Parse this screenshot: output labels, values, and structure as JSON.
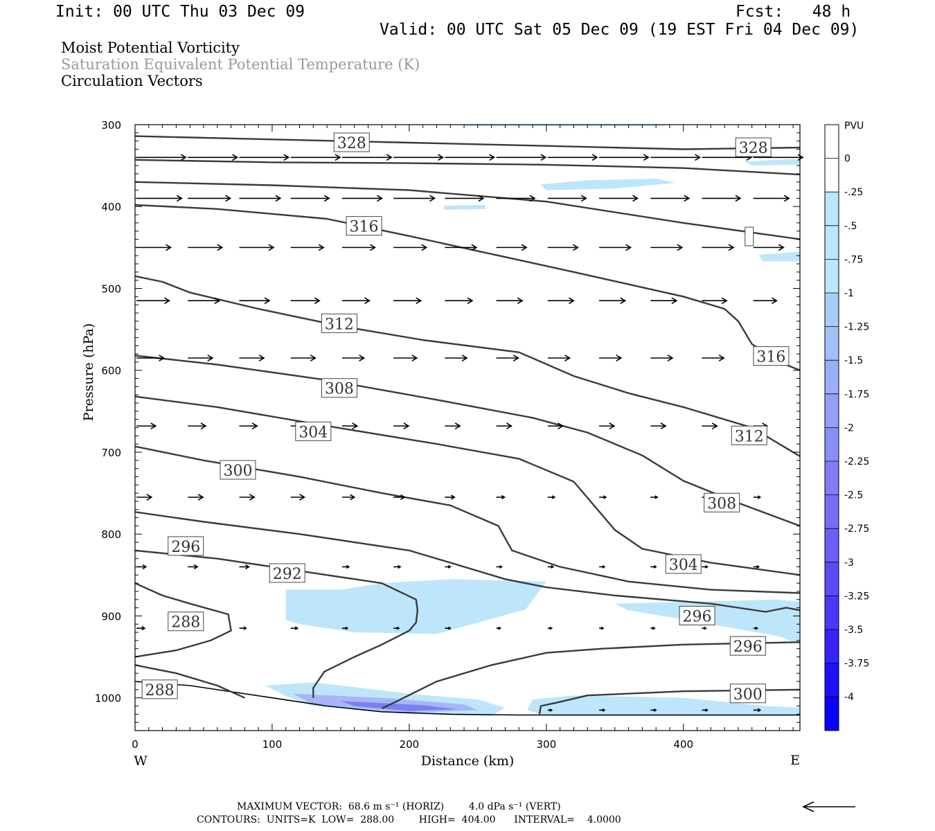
{
  "header": {
    "init": "Init: 00 UTC Thu 03 Dec 09",
    "fcst": "Fcst:   48 h",
    "valid": "Valid: 00 UTC Sat 05 Dec 09 (19 EST Fri 04 Dec 09)"
  },
  "titles": {
    "line1": "Moist Potential Vorticity",
    "line2": "Saturation Equivalent Potential Temperature (K)",
    "line3": "Circulation Vectors"
  },
  "footer": {
    "vector_line": "MAXIMUM VECTOR:  68.6 m s⁻¹ (HORIZ)        4.0 dPa s⁻¹ (VERT)",
    "contour_line": "CONTOURS:  UNITS=K  LOW=  288.00        HIGH=  404.00      INTERVAL=    4.0000"
  },
  "colors": {
    "contour": "#3a3a3a",
    "pv_light": "#bde6fb",
    "pv_mid": "#a7b6f8",
    "pv_deep": "#7d7ef3"
  },
  "chart_data": {
    "type": "cross-section",
    "xlabel": "Distance (km)",
    "ylabel": "Pressure (hPa)",
    "xlim": [
      0,
      485
    ],
    "ylim": [
      300,
      1040
    ],
    "y_scale": "linear-inverted",
    "x_ticks": [
      "0",
      "100",
      "200",
      "300",
      "400"
    ],
    "y_ticks": [
      "300",
      "400",
      "500",
      "600",
      "700",
      "800",
      "900",
      "1000"
    ],
    "left_label": "W",
    "right_label": "E",
    "colorbar": {
      "unit": "PVU",
      "labels": [
        "0",
        "-.25",
        "-.5",
        "-.75",
        "-1",
        "-1.25",
        "-1.5",
        "-1.75",
        "-2",
        "-2.25",
        "-2.5",
        "-2.75",
        "-3",
        "-3.25",
        "-3.5",
        "-3.75",
        "-4"
      ],
      "colors": [
        "#ffffff",
        "#ffffff",
        "#bde6fb",
        "#bde6fb",
        "#bde6fb",
        "#a9cdfa",
        "#a1c0f9",
        "#9aaff8",
        "#939ff8",
        "#8b8df7",
        "#847cf6",
        "#7b6cf5",
        "#6d5cf5",
        "#5c4af5",
        "#4b37f6",
        "#3623f7",
        "#1f10f9",
        "#0a00fb"
      ]
    },
    "contours": [
      {
        "label": "328",
        "points": [
          [
            0,
            314
          ],
          [
            100,
            318
          ],
          [
            200,
            322
          ],
          [
            300,
            326
          ],
          [
            400,
            330
          ],
          [
            485,
            328
          ]
        ]
      },
      {
        "label": "",
        "points": [
          [
            0,
            343
          ],
          [
            100,
            346
          ],
          [
            200,
            347
          ],
          [
            300,
            349
          ],
          [
            400,
            353
          ],
          [
            485,
            361
          ]
        ]
      },
      {
        "label": "",
        "points": [
          [
            0,
            370
          ],
          [
            100,
            374
          ],
          [
            200,
            380
          ],
          [
            300,
            394
          ],
          [
            400,
            420
          ],
          [
            485,
            440
          ]
        ]
      },
      {
        "label": "316",
        "points": [
          [
            0,
            398
          ],
          [
            60,
            403
          ],
          [
            140,
            415
          ],
          [
            200,
            436
          ],
          [
            260,
            458
          ],
          [
            320,
            480
          ],
          [
            400,
            510
          ],
          [
            430,
            525
          ],
          [
            440,
            540
          ],
          [
            450,
            568
          ],
          [
            470,
            590
          ],
          [
            485,
            600
          ]
        ]
      },
      {
        "label": "312",
        "points": [
          [
            0,
            485
          ],
          [
            20,
            492
          ],
          [
            40,
            505
          ],
          [
            90,
            525
          ],
          [
            150,
            546
          ],
          [
            210,
            563
          ],
          [
            280,
            578
          ],
          [
            320,
            607
          ],
          [
            360,
            628
          ],
          [
            400,
            645
          ],
          [
            430,
            660
          ],
          [
            450,
            670
          ],
          [
            485,
            705
          ]
        ]
      },
      {
        "label": "308",
        "points": [
          [
            0,
            582
          ],
          [
            60,
            593
          ],
          [
            140,
            612
          ],
          [
            220,
            636
          ],
          [
            290,
            658
          ],
          [
            330,
            676
          ],
          [
            370,
            704
          ],
          [
            400,
            735
          ],
          [
            440,
            762
          ],
          [
            485,
            790
          ]
        ]
      },
      {
        "label": "304",
        "points": [
          [
            0,
            632
          ],
          [
            60,
            645
          ],
          [
            140,
            668
          ],
          [
            220,
            690
          ],
          [
            280,
            708
          ],
          [
            320,
            736
          ],
          [
            350,
            795
          ],
          [
            370,
            818
          ],
          [
            420,
            835
          ],
          [
            485,
            850
          ]
        ]
      },
      {
        "label": "300",
        "points": [
          [
            0,
            693
          ],
          [
            50,
            710
          ],
          [
            120,
            730
          ],
          [
            180,
            750
          ],
          [
            230,
            765
          ],
          [
            265,
            790
          ],
          [
            275,
            820
          ],
          [
            310,
            840
          ],
          [
            360,
            858
          ],
          [
            420,
            868
          ],
          [
            485,
            872
          ]
        ]
      },
      {
        "label": "296",
        "points": [
          [
            0,
            773
          ],
          [
            50,
            785
          ],
          [
            120,
            800
          ],
          [
            200,
            820
          ],
          [
            240,
            840
          ],
          [
            270,
            855
          ],
          [
            300,
            865
          ],
          [
            350,
            875
          ],
          [
            420,
            885
          ],
          [
            460,
            895
          ],
          [
            475,
            890
          ],
          [
            485,
            893
          ]
        ]
      },
      {
        "label": "292",
        "points": [
          [
            0,
            820
          ],
          [
            60,
            830
          ],
          [
            120,
            845
          ],
          [
            180,
            860
          ],
          [
            205,
            880
          ],
          [
            206,
            893
          ],
          [
            205,
            908
          ],
          [
            200,
            918
          ],
          [
            180,
            935
          ],
          [
            160,
            950
          ],
          [
            138,
            968
          ],
          [
            130,
            988
          ],
          [
            130,
            1000
          ]
        ]
      },
      {
        "label": "288",
        "points": [
          [
            0,
            860
          ],
          [
            20,
            875
          ],
          [
            40,
            885
          ],
          [
            68,
            898
          ],
          [
            70,
            918
          ],
          [
            55,
            930
          ],
          [
            30,
            942
          ],
          [
            0,
            950
          ]
        ]
      },
      {
        "label": "288",
        "points": [
          [
            0,
            960
          ],
          [
            30,
            970
          ],
          [
            60,
            985
          ],
          [
            80,
            1000
          ]
        ]
      },
      {
        "label": "296",
        "points": [
          [
            485,
            932
          ],
          [
            400,
            935
          ],
          [
            340,
            940
          ],
          [
            300,
            945
          ],
          [
            260,
            960
          ],
          [
            220,
            980
          ],
          [
            190,
            1005
          ],
          [
            180,
            1013
          ]
        ]
      },
      {
        "label": "300",
        "points": [
          [
            485,
            990
          ],
          [
            400,
            992
          ],
          [
            330,
            997
          ],
          [
            310,
            1005
          ],
          [
            296,
            1010
          ],
          [
            295,
            1020
          ]
        ]
      }
    ],
    "shading_regions": [
      {
        "level": "-0.5",
        "points": [
          [
            240,
            300
          ],
          [
            380,
            300
          ],
          [
            390,
            302
          ],
          [
            240,
            302
          ]
        ]
      },
      {
        "level": "-0.5",
        "points": [
          [
            296,
            373
          ],
          [
            330,
            368
          ],
          [
            380,
            366
          ],
          [
            394,
            371
          ],
          [
            350,
            378
          ],
          [
            300,
            380
          ]
        ]
      },
      {
        "level": "-0.5",
        "points": [
          [
            445,
            345
          ],
          [
            478,
            342
          ],
          [
            485,
            343
          ],
          [
            485,
            349
          ],
          [
            450,
            350
          ]
        ]
      },
      {
        "level": "-0.5",
        "points": [
          [
            225,
            399
          ],
          [
            255,
            398
          ],
          [
            256,
            403
          ],
          [
            226,
            404
          ]
        ]
      },
      {
        "level": "-0.5",
        "points": [
          [
            455,
            459
          ],
          [
            485,
            455
          ],
          [
            485,
            467
          ],
          [
            458,
            467
          ]
        ]
      },
      {
        "level": "-0.5",
        "points": [
          [
            110,
            868
          ],
          [
            150,
            868
          ],
          [
            180,
            860
          ],
          [
            230,
            855
          ],
          [
            300,
            858
          ],
          [
            285,
            892
          ],
          [
            220,
            922
          ],
          [
            160,
            920
          ],
          [
            120,
            910
          ],
          [
            110,
            905
          ]
        ]
      },
      {
        "level": "-0.5",
        "points": [
          [
            350,
            885
          ],
          [
            420,
            882
          ],
          [
            470,
            880
          ],
          [
            485,
            883
          ],
          [
            485,
            935
          ],
          [
            470,
            925
          ],
          [
            420,
            910
          ],
          [
            360,
            893
          ]
        ]
      },
      {
        "level": "-0.5",
        "points": [
          [
            95,
            985
          ],
          [
            130,
            981
          ],
          [
            200,
            995
          ],
          [
            250,
            1002
          ],
          [
            270,
            1012
          ],
          [
            260,
            1022
          ],
          [
            200,
            1020
          ],
          [
            130,
            1010
          ],
          [
            110,
            998
          ]
        ]
      },
      {
        "level": "-0.5",
        "points": [
          [
            290,
            1002
          ],
          [
            320,
            997
          ],
          [
            400,
            1000
          ],
          [
            460,
            1010
          ],
          [
            485,
            1012
          ],
          [
            485,
            1022
          ],
          [
            300,
            1022
          ],
          [
            286,
            1015
          ]
        ]
      },
      {
        "level": "-1.0",
        "points": [
          [
            115,
            995
          ],
          [
            180,
            1000
          ],
          [
            240,
            1008
          ],
          [
            250,
            1015
          ],
          [
            200,
            1018
          ],
          [
            130,
            1008
          ]
        ]
      },
      {
        "level": "-2.0",
        "points": [
          [
            150,
            1004
          ],
          [
            210,
            1009
          ],
          [
            235,
            1014
          ],
          [
            200,
            1016
          ],
          [
            160,
            1010
          ]
        ]
      }
    ],
    "terrain_line": [
      [
        0,
        980
      ],
      [
        40,
        985
      ],
      [
        100,
        1000
      ],
      [
        140,
        1010
      ],
      [
        180,
        1017
      ],
      [
        230,
        1020
      ],
      [
        280,
        1021
      ],
      [
        485,
        1021
      ]
    ],
    "max_vector": {
      "horiz": 68.6,
      "vert": 4.0
    },
    "vector_rows": [
      {
        "p": 340,
        "len_km": [
          36,
          36,
          36,
          36,
          36,
          36,
          36,
          36,
          36,
          36,
          36,
          36,
          36
        ]
      },
      {
        "p": 390,
        "len_km": [
          33,
          31,
          30,
          28,
          29,
          30,
          28,
          28,
          28,
          28,
          28,
          28,
          26
        ]
      },
      {
        "p": 450,
        "len_km": [
          25,
          25,
          25,
          24,
          24,
          24,
          23,
          22,
          22,
          23,
          23,
          23,
          22
        ]
      },
      {
        "p": 515,
        "len_km": [
          24,
          23,
          22,
          21,
          20,
          20,
          20,
          19,
          19,
          19,
          19,
          18,
          17
        ]
      },
      {
        "p": 585,
        "len_km": [
          20,
          18,
          18,
          18,
          16,
          17,
          16,
          16,
          16,
          16,
          16,
          16,
          15
        ]
      },
      {
        "p": 668,
        "len_km": [
          14,
          13,
          13,
          11,
          11,
          11,
          11,
          11,
          11,
          11,
          11,
          11,
          10
        ]
      },
      {
        "p": 755,
        "len_km": [
          11,
          11,
          11,
          10,
          9,
          8,
          7,
          6,
          5,
          5,
          5,
          5,
          5
        ]
      },
      {
        "p": 840,
        "len_km": [
          7,
          7,
          7,
          6,
          5,
          5,
          4,
          4,
          4,
          4,
          4,
          4,
          4
        ]
      },
      {
        "p": 915,
        "len_km": [
          6,
          5,
          5,
          5,
          4,
          4,
          4,
          3,
          3,
          3,
          3,
          3,
          3
        ]
      },
      {
        "p": 1015,
        "len_km": [
          0,
          0,
          0,
          0,
          0,
          0,
          0,
          0,
          3,
          4,
          4,
          4,
          5
        ]
      }
    ]
  }
}
